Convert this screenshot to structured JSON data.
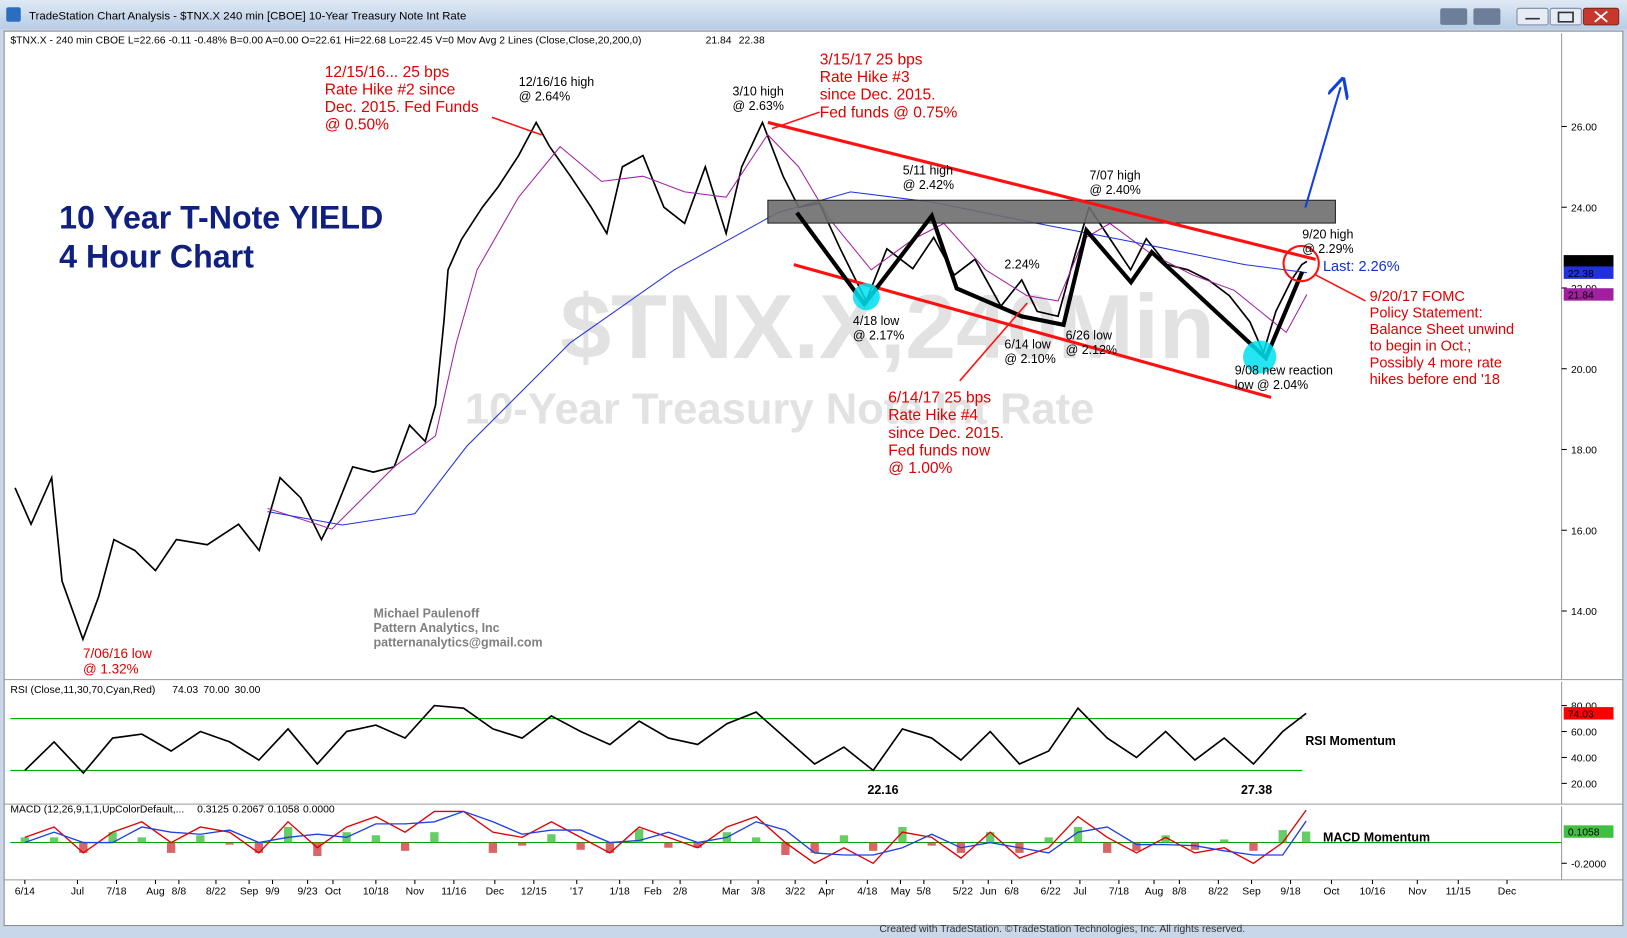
{
  "window_title": "TradeStation Chart Analysis - $TNX.X 240 min [CBOE] 10-Year Treasury Note Int Rate",
  "info_line": "$TNX.X - 240 min  CBOE  L=22.66  -0.11  -0.48%  B=0.00  A=0.00  O=22.61  Hi=22.68  Lo=22.45  V=0  Mov Avg 2 Lines (Close,Close,20,200,0)",
  "footer": "Created with TradeStation. ©TradeStation Technologies, Inc. All rights reserved.",
  "chart_data": [
    {
      "type": "line",
      "title": [
        "10 Year T-Note YIELD",
        "4 Hour Chart"
      ],
      "watermark": [
        "$TNX.X,240Min",
        "10-Year Treasury Note Int Rate"
      ],
      "xlim": [
        -0.74,
        78.8
      ],
      "xticks": [
        {
          "value": 0,
          "label": "6/14"
        },
        {
          "value": 2.7,
          "label": "Jul"
        },
        {
          "value": 4.7,
          "label": "7/18"
        },
        {
          "value": 6.7,
          "label": "Aug"
        },
        {
          "value": 7.9,
          "label": "8/8"
        },
        {
          "value": 9.8,
          "label": "8/22"
        },
        {
          "value": 11.5,
          "label": "Sep"
        },
        {
          "value": 12.7,
          "label": "9/9"
        },
        {
          "value": 14.5,
          "label": "9/23"
        },
        {
          "value": 15.8,
          "label": "Oct"
        },
        {
          "value": 18.0,
          "label": "10/18"
        },
        {
          "value": 20.0,
          "label": "Nov"
        },
        {
          "value": 22.0,
          "label": "11/16"
        },
        {
          "value": 24.1,
          "label": "Dec"
        },
        {
          "value": 26.1,
          "label": "12/15"
        },
        {
          "value": 28.3,
          "label": "'17"
        },
        {
          "value": 30.5,
          "label": "1/18"
        },
        {
          "value": 32.2,
          "label": "Feb"
        },
        {
          "value": 33.6,
          "label": "2/8"
        },
        {
          "value": 36.2,
          "label": "Mar"
        },
        {
          "value": 37.6,
          "label": "3/8"
        },
        {
          "value": 39.5,
          "label": "3/22"
        },
        {
          "value": 41.1,
          "label": "Apr"
        },
        {
          "value": 43.2,
          "label": "4/18"
        },
        {
          "value": 44.9,
          "label": "May"
        },
        {
          "value": 46.1,
          "label": "5/8"
        },
        {
          "value": 48.1,
          "label": "5/22"
        },
        {
          "value": 49.4,
          "label": "Jun"
        },
        {
          "value": 50.6,
          "label": "6/8"
        },
        {
          "value": 52.6,
          "label": "6/22"
        },
        {
          "value": 54.1,
          "label": "Jul"
        },
        {
          "value": 56.1,
          "label": "7/18"
        },
        {
          "value": 57.9,
          "label": "Aug"
        },
        {
          "value": 59.2,
          "label": "8/8"
        },
        {
          "value": 61.2,
          "label": "8/22"
        },
        {
          "value": 62.9,
          "label": "Sep"
        },
        {
          "value": 64.9,
          "label": "9/18"
        },
        {
          "value": 67.0,
          "label": "Oct"
        },
        {
          "value": 69.1,
          "label": "10/16"
        },
        {
          "value": 71.4,
          "label": "Nov"
        },
        {
          "value": 73.5,
          "label": "11/15"
        },
        {
          "value": 76.0,
          "label": "Dec"
        }
      ],
      "ylim": [
        12.3,
        28.31
      ],
      "yticks": [
        {
          "value": 14,
          "label": "14.00"
        },
        {
          "value": 16,
          "label": "16.00"
        },
        {
          "value": 18,
          "label": "18.00"
        },
        {
          "value": 20,
          "label": "20.00"
        },
        {
          "value": 22,
          "label": "22.00"
        },
        {
          "value": 24,
          "label": "24.00"
        },
        {
          "value": 26,
          "label": "26.00"
        }
      ],
      "series": [
        {
          "color": "#000000",
          "x": [
            -0.5,
            0.32,
            1.38,
            1.91,
            2.98,
            3.78,
            4.57,
            5.64,
            6.7,
            7.77,
            9.36,
            10.96,
            12.02,
            13.09,
            14.15,
            15.21,
            15.74,
            16.81,
            17.87,
            18.94,
            19.73,
            20.53,
            21.06,
            21.49,
            21.7,
            22.39,
            23.46,
            24.26,
            25.32,
            26.22,
            26.91,
            27.98,
            29.04,
            29.84,
            30.64,
            31.7,
            32.77,
            33.83,
            34.89,
            35.96,
            36.76,
            37.82,
            38.88,
            39.68,
            40.74,
            41.81,
            43.14,
            44.2,
            45.53,
            46.6,
            47.66,
            48.72,
            50.05,
            51.12,
            51.91,
            52.98,
            53.78,
            54.57,
            55.64,
            56.7,
            57.5,
            58.56,
            59.63,
            60.69,
            61.76,
            62.82,
            63.51,
            64.15,
            64.95,
            65.48,
            65.74
          ],
          "values": [
            17.05,
            16.15,
            17.3,
            14.74,
            13.3,
            14.35,
            15.77,
            15.5,
            15.0,
            15.77,
            15.64,
            16.15,
            15.5,
            17.3,
            16.8,
            15.77,
            16.28,
            17.57,
            17.44,
            17.57,
            18.6,
            18.2,
            19.1,
            21.16,
            22.45,
            23.2,
            24.0,
            24.5,
            25.28,
            26.1,
            25.5,
            24.77,
            24.0,
            23.35,
            25.0,
            25.28,
            24.0,
            23.6,
            25.0,
            23.35,
            25.0,
            26.1,
            24.77,
            24.0,
            24.1,
            22.97,
            21.68,
            22.97,
            22.48,
            23.25,
            22.32,
            22.71,
            21.55,
            22.2,
            21.42,
            21.3,
            22.71,
            24.0,
            23.22,
            22.45,
            23.22,
            22.58,
            22.45,
            22.2,
            21.81,
            21.16,
            20.4,
            21.42,
            22.2,
            22.58,
            22.66
          ]
        },
        {
          "color": "#a020a0",
          "x": [
            12.45,
            15.74,
            18.94,
            21.06,
            22.13,
            23.19,
            25.32,
            27.45,
            29.57,
            31.7,
            33.83,
            35.96,
            38.09,
            39.68,
            41.28,
            43.4,
            45.53,
            47.13,
            49.26,
            51.38,
            52.98,
            54.31,
            55.64,
            57.77,
            59.89,
            62.02,
            63.35,
            64.68,
            65.74
          ],
          "values": [
            16.54,
            16.03,
            17.57,
            18.34,
            20.65,
            22.45,
            24.25,
            25.5,
            24.64,
            24.77,
            24.38,
            24.25,
            25.8,
            25.0,
            23.7,
            22.45,
            23.2,
            23.6,
            22.45,
            21.81,
            21.68,
            23.22,
            23.6,
            22.84,
            22.32,
            21.94,
            21.42,
            20.9,
            21.84
          ]
        },
        {
          "color": "#2030e0",
          "x": [
            12.45,
            16.28,
            20.0,
            22.66,
            27.98,
            33.3,
            38.62,
            42.34,
            46.6,
            51.91,
            57.23,
            62.55,
            65.74
          ],
          "values": [
            16.46,
            16.13,
            16.41,
            18.08,
            20.65,
            22.45,
            23.87,
            24.38,
            24.12,
            23.6,
            23.1,
            22.58,
            22.38
          ]
        }
      ],
      "annotations": [
        {
          "color": "#e00000",
          "lines": [
            "12/15/16... 25 bps",
            "Rate Hike #2 since",
            "Dec. 2015. Fed Funds",
            "@ 0.50%"
          ]
        },
        {
          "color": "#000000",
          "lines": [
            "12/16/16 high",
            "@ 2.64%"
          ]
        },
        {
          "color": "#e00000",
          "lines": [
            "3/15/17 25 bps",
            "Rate Hike #3",
            "since Dec. 2015.",
            "Fed funds @ 0.75%"
          ]
        },
        {
          "color": "#000000",
          "lines": [
            "3/10 high",
            "@ 2.63%"
          ]
        },
        {
          "color": "#000000",
          "lines": [
            "5/11 high",
            "@ 2.42%"
          ]
        },
        {
          "color": "#000000",
          "lines": [
            "7/07 high",
            "@ 2.40%"
          ]
        },
        {
          "color": "#000000",
          "lines": [
            "2.24%"
          ]
        },
        {
          "color": "#000000",
          "lines": [
            "9/20 high",
            "@ 2.29%"
          ]
        },
        {
          "color": "#1030d0",
          "lines": [
            "Last: 2.26%"
          ]
        },
        {
          "color": "#000000",
          "lines": [
            "4/18 low",
            "@ 2.17%"
          ]
        },
        {
          "color": "#000000",
          "lines": [
            "6/14 low",
            "@ 2.10%"
          ]
        },
        {
          "color": "#000000",
          "lines": [
            "6/26 low",
            "@ 2.12%"
          ]
        },
        {
          "color": "#000000",
          "lines": [
            "9/08 new reaction",
            "low @ 2.04%"
          ]
        },
        {
          "color": "#e00000",
          "lines": [
            "6/14/17 25 bps",
            "Rate Hike #4",
            "since Dec. 2015.",
            "Fed funds now",
            "@ 1.00%"
          ]
        },
        {
          "color": "#e00000",
          "lines": [
            "9/20/17 FOMC",
            "Policy Statement:",
            "Balance Sheet unwind",
            "to begin in Oct.;",
            "Possibly 4 more rate",
            "hikes before end '18"
          ]
        },
        {
          "color": "#e00000",
          "lines": [
            "7/06/16 low",
            "@ 1.32%"
          ]
        },
        {
          "color": "#808080",
          "lines": [
            "Michael Paulenoff",
            "Pattern Analytics, Inc",
            "patternanalytics@gmail.com"
          ]
        }
      ]
    },
    {
      "type": "line",
      "header": "RSI (Close,11,30,70,Cyan,Red)",
      "ylim": [
        4,
        98.4
      ],
      "yticks": [
        {
          "value": 20,
          "label": "20.00"
        },
        {
          "value": 40,
          "label": "40.00"
        },
        {
          "value": 60,
          "label": "60.00"
        },
        {
          "value": 80,
          "label": "80.00"
        }
      ],
      "levels": [
        {
          "value": 70,
          "label": "70.00"
        },
        {
          "value": 30,
          "label": "30.00"
        }
      ],
      "level_color": "#00b000",
      "tag_color": "#ff0000",
      "x": [
        0,
        1.5,
        3,
        4.5,
        6,
        7.5,
        9,
        10.5,
        12,
        13.5,
        15,
        16.5,
        18,
        19.5,
        21,
        22.5,
        24,
        25.5,
        27,
        28.5,
        30,
        31.5,
        33,
        34.5,
        36,
        37.5,
        39,
        40.5,
        42,
        43.5,
        45,
        46.5,
        48,
        49.5,
        51,
        52.5,
        54,
        55.5,
        57,
        58.5,
        60,
        61.5,
        63,
        64.5,
        65.7
      ],
      "series": [
        {
          "color": "#000000",
          "values": [
            30,
            52,
            28,
            55,
            58,
            45,
            60,
            52,
            38,
            62,
            35,
            60,
            65,
            55,
            80,
            78,
            62,
            55,
            72,
            60,
            50,
            68,
            55,
            50,
            66,
            75,
            55,
            35,
            48,
            30,
            62,
            55,
            38,
            60,
            35,
            45,
            78,
            55,
            40,
            60,
            38,
            55,
            35,
            60,
            74.03
          ]
        }
      ],
      "annotations": [
        "RSI Momentum",
        "22.16",
        "27.38"
      ]
    },
    {
      "type": "line",
      "header": "MACD (12,26,9,1,1,UpColorDefault,...",
      "ylim": [
        -0.36,
        0.35
      ],
      "yticks": [
        {
          "value": -0.2,
          "label": "-0.2000"
        }
      ],
      "zero_line": {
        "value": 0,
        "label": "0.0000"
      },
      "x": [
        0,
        1.5,
        3,
        4.5,
        6,
        7.5,
        9,
        10.5,
        12,
        13.5,
        15,
        16.5,
        18,
        19.5,
        21,
        22.5,
        24,
        25.5,
        27,
        28.5,
        30,
        31.5,
        33,
        34.5,
        36,
        37.5,
        39,
        40.5,
        42,
        43.5,
        45,
        46.5,
        48,
        49.5,
        51,
        52.5,
        54,
        55.5,
        57,
        58.5,
        60,
        61.5,
        63,
        64.5,
        65.7
      ],
      "series": [
        {
          "type": "line",
          "color": "#e00000",
          "values": [
            0.05,
            0.15,
            -0.1,
            0.1,
            0.2,
            0.0,
            0.15,
            0.1,
            -0.1,
            0.2,
            -0.05,
            0.15,
            0.25,
            0.1,
            0.3,
            0.3,
            0.1,
            0.05,
            0.2,
            0.05,
            -0.1,
            0.15,
            0.05,
            -0.05,
            0.15,
            0.25,
            0.0,
            -0.2,
            -0.05,
            -0.2,
            0.1,
            0.05,
            -0.15,
            0.1,
            -0.15,
            -0.05,
            0.25,
            0.05,
            -0.1,
            0.05,
            -0.1,
            -0.05,
            -0.2,
            0.0,
            0.3125
          ]
        },
        {
          "type": "line",
          "color": "#2040e0",
          "values": [
            0.0,
            0.1,
            0.0,
            0.0,
            0.15,
            0.1,
            0.08,
            0.12,
            0.0,
            0.05,
            0.08,
            0.05,
            0.18,
            0.18,
            0.2,
            0.3,
            0.2,
            0.08,
            0.12,
            0.12,
            0.0,
            0.02,
            0.1,
            0.0,
            0.05,
            0.2,
            0.12,
            -0.1,
            -0.12,
            -0.12,
            -0.05,
            0.08,
            -0.05,
            0.0,
            -0.05,
            -0.1,
            0.1,
            0.15,
            -0.02,
            -0.02,
            -0.03,
            -0.08,
            -0.12,
            -0.12,
            0.2067
          ]
        },
        {
          "type": "bar",
          "color": "#40c040",
          "down_color": "#d04040",
          "values": [
            0.05,
            0.05,
            -0.1,
            0.1,
            0.05,
            -0.1,
            0.07,
            -0.02,
            -0.1,
            0.15,
            -0.13,
            0.1,
            0.07,
            -0.08,
            0.1,
            0.0,
            -0.1,
            -0.03,
            0.08,
            -0.07,
            -0.1,
            0.13,
            -0.05,
            -0.05,
            0.1,
            0.05,
            -0.12,
            -0.1,
            0.07,
            -0.08,
            0.15,
            -0.03,
            -0.1,
            0.1,
            -0.1,
            0.05,
            0.15,
            -0.1,
            -0.08,
            0.07,
            -0.07,
            0.03,
            -0.08,
            0.12,
            0.1058
          ]
        }
      ],
      "annotations": [
        "MACD Momentum"
      ]
    }
  ]
}
